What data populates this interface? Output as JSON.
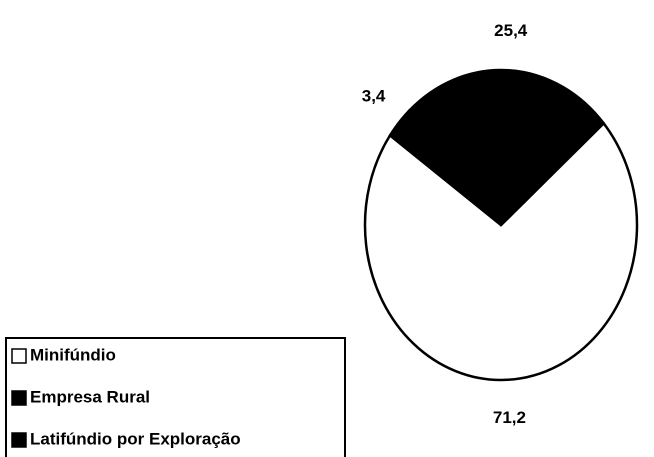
{
  "chart_data": {
    "type": "pie",
    "categories": [
      "Minifúndio",
      "Latifúndio por Exploração",
      "Empresa Rural"
    ],
    "values": [
      71.2,
      3.4,
      25.4
    ],
    "value_labels": [
      "71,2",
      "3,4",
      "25,4"
    ],
    "colors": [
      "#ffffff",
      "#000000",
      "#000000"
    ],
    "legend_order": [
      0,
      2,
      1
    ],
    "legend": "bottom-left"
  }
}
